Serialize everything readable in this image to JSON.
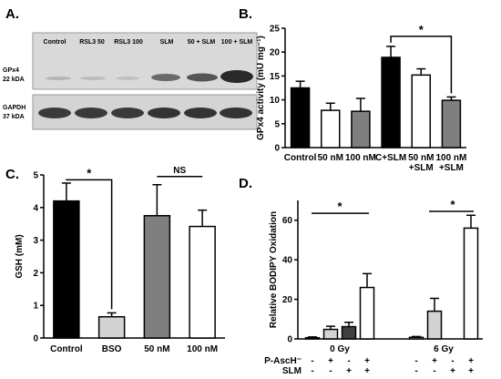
{
  "figure": {
    "panel_a": {
      "letter": "A.",
      "lanes": [
        "Control",
        "RSL3 50",
        "RSL3 100",
        "SLM",
        "50 + SLM",
        "100 + SLM"
      ],
      "gpx4_label_1": "GPx4",
      "gpx4_label_2": "22 kDA",
      "gapdh_label_1": "GAPDH",
      "gapdh_label_2": "37 kDA"
    },
    "panel_b": {
      "letter": "B."
    },
    "panel_c": {
      "letter": "C."
    },
    "panel_d": {
      "letter": "D."
    }
  },
  "chart_data": [
    {
      "panel": "B",
      "type": "bar",
      "categories": [
        "Control",
        "50 nM",
        "100 nM",
        "C+SLM",
        "50 nM\n+SLM",
        "100 nM\n+SLM"
      ],
      "values": [
        12.5,
        7.8,
        7.6,
        18.9,
        15.2,
        9.9
      ],
      "errors": [
        1.4,
        1.5,
        2.7,
        2.3,
        1.3,
        0.7
      ],
      "colors": [
        "#000000",
        "#ffffff",
        "#7f7f7f",
        "#000000",
        "#ffffff",
        "#7f7f7f"
      ],
      "ylabel": "GPx4 activity (mU mg⁻¹)",
      "ylim": [
        0,
        25
      ],
      "yticks": [
        0,
        5,
        10,
        15,
        20,
        25
      ],
      "significance": [
        {
          "from": 3,
          "to": 5,
          "label": "*"
        }
      ]
    },
    {
      "panel": "C",
      "type": "bar",
      "categories": [
        "Control",
        "BSO",
        "50 nM",
        "100 nM"
      ],
      "values": [
        4.2,
        0.65,
        3.75,
        3.42
      ],
      "errors": [
        0.55,
        0.12,
        0.95,
        0.5
      ],
      "colors": [
        "#000000",
        "#d3d3d3",
        "#7f7f7f",
        "#ffffff"
      ],
      "ylabel": "GSH (mM)",
      "ylim": [
        0,
        5
      ],
      "yticks": [
        0,
        1,
        2,
        3,
        4,
        5
      ],
      "significance": [
        {
          "from": 0,
          "to": 1,
          "label": "*"
        },
        {
          "from": 2,
          "to": 3,
          "label": "NS"
        }
      ]
    },
    {
      "panel": "D",
      "type": "bar",
      "groups": [
        "0 Gy",
        "6 Gy"
      ],
      "row_labels": [
        "P-AscH⁻",
        "SLM"
      ],
      "conditions": [
        {
          "pasch": "-",
          "slm": "-"
        },
        {
          "pasch": "+",
          "slm": "-"
        },
        {
          "pasch": "-",
          "slm": "+"
        },
        {
          "pasch": "+",
          "slm": "+"
        }
      ],
      "series_colors": [
        "#ffffff",
        "#d3d3d3",
        "#404040",
        "#ffffff"
      ],
      "values": [
        [
          0.6,
          4.8,
          6.2,
          26
        ],
        [
          0.8,
          14,
          0,
          56
        ]
      ],
      "errors": [
        [
          0.4,
          1.6,
          2.2,
          7
        ],
        [
          0.4,
          6.5,
          0,
          6.5
        ]
      ],
      "ylabel": "Relative BODIPY Oxidation",
      "ylim": [
        0,
        70
      ],
      "yticks": [
        0,
        20,
        40,
        60
      ],
      "significance": [
        {
          "group": 0,
          "from": 0,
          "to": 3,
          "label": "*"
        },
        {
          "group": 1,
          "from": 1,
          "to": 3,
          "label": "*"
        }
      ]
    }
  ]
}
